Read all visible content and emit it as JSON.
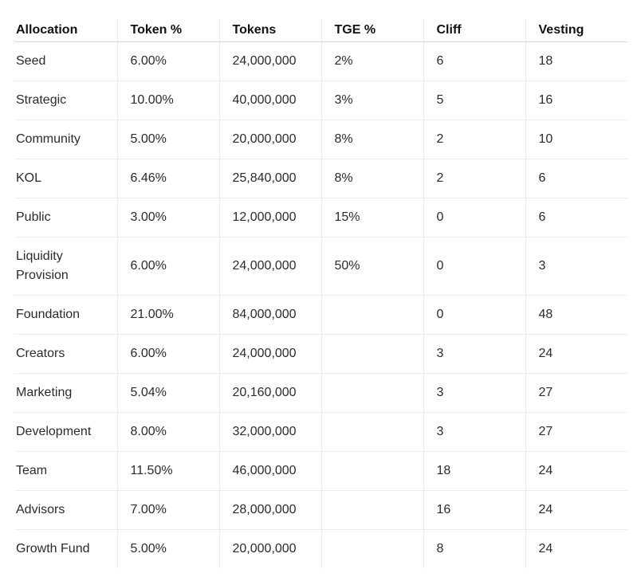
{
  "table": {
    "headers": [
      "Allocation",
      "Token %",
      "Tokens",
      "TGE %",
      "Cliff",
      "Vesting"
    ],
    "rows": [
      [
        "Seed",
        "6.00%",
        "24,000,000",
        "2%",
        "6",
        "18"
      ],
      [
        "Strategic",
        "10.00%",
        "40,000,000",
        "3%",
        "5",
        "16"
      ],
      [
        "Community",
        "5.00%",
        "20,000,000",
        "8%",
        "2",
        "10"
      ],
      [
        "KOL",
        "6.46%",
        "25,840,000",
        "8%",
        "2",
        "6"
      ],
      [
        "Public",
        "3.00%",
        "12,000,000",
        "15%",
        "0",
        "6"
      ],
      [
        "Liquidity Provision",
        "6.00%",
        "24,000,000",
        "50%",
        "0",
        "3"
      ],
      [
        "Foundation",
        "21.00%",
        "84,000,000",
        "",
        "0",
        "48"
      ],
      [
        "Creators",
        "6.00%",
        "24,000,000",
        "",
        "3",
        "24"
      ],
      [
        "Marketing",
        "5.04%",
        "20,160,000",
        "",
        "3",
        "27"
      ],
      [
        "Development",
        "8.00%",
        "32,000,000",
        "",
        "3",
        "27"
      ],
      [
        "Team",
        "11.50%",
        "46,000,000",
        "",
        "18",
        "24"
      ],
      [
        "Advisors",
        "7.00%",
        "28,000,000",
        "",
        "16",
        "24"
      ],
      [
        "Growth Fund",
        "5.00%",
        "20,000,000",
        "",
        "8",
        "24"
      ]
    ]
  }
}
